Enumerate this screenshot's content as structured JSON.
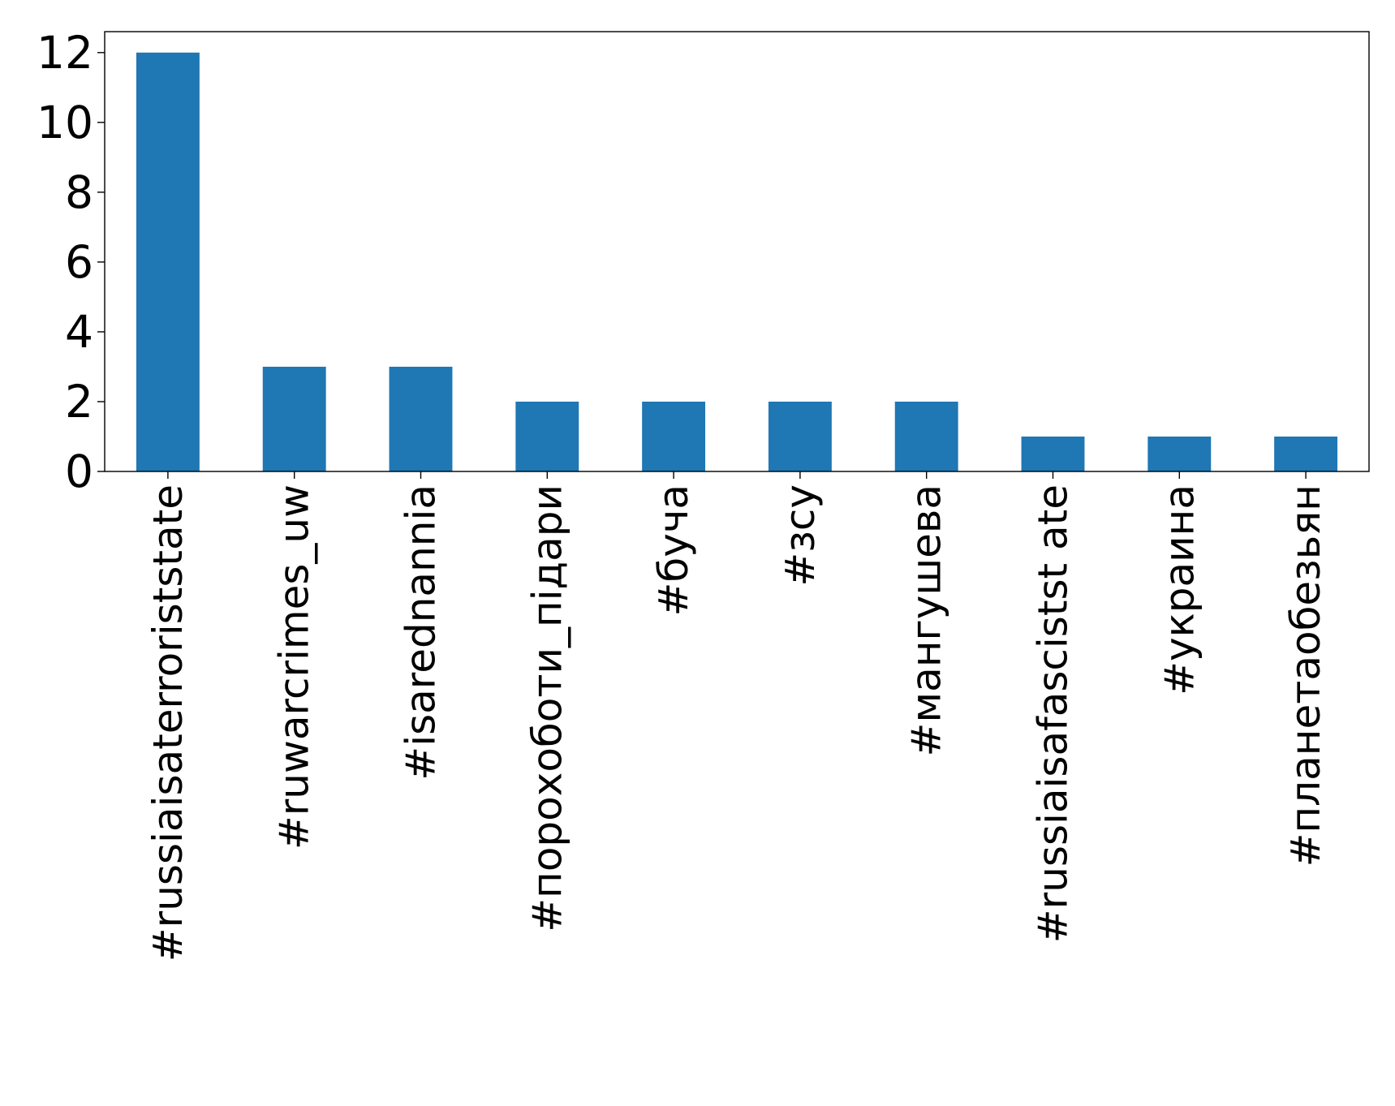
{
  "chart_data": {
    "type": "bar",
    "title": "",
    "xlabel": "",
    "ylabel": "",
    "categories": [
      "#russiaisaterroriststate",
      "#ruwarcrimes_uw",
      "#isarednannia",
      "#порохоботи_підари",
      "#буча",
      "#зсу",
      "#мангушева",
      "#russiaisafascistst ate",
      "#украина",
      "#планетаобезьян"
    ],
    "values": [
      12,
      3,
      3,
      2,
      2,
      2,
      2,
      1,
      1,
      1
    ],
    "ylim": [
      0,
      12.6
    ],
    "yticks": [
      0,
      2,
      4,
      6,
      8,
      10,
      12
    ],
    "bar_color": "#1f77b4",
    "grid": false,
    "legend": "none"
  }
}
